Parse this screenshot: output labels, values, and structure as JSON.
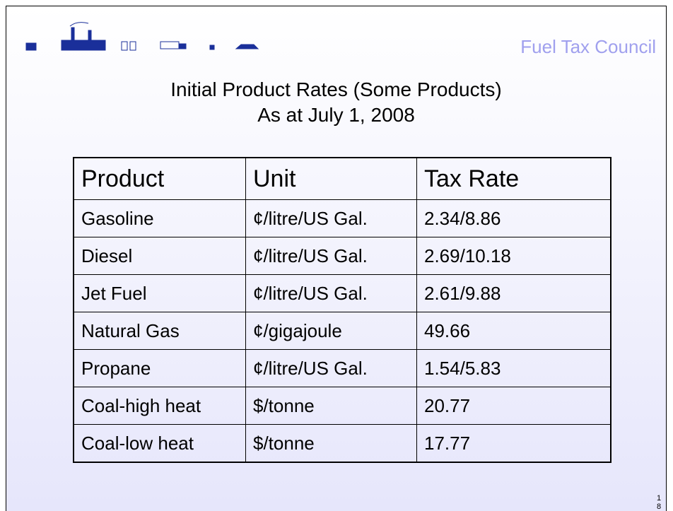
{
  "header": {
    "brand": "Fuel Tax Council"
  },
  "title": {
    "lines": [
      "Initial Product Rates (Some Products)",
      "As at July 1, 2008"
    ]
  },
  "table": {
    "columns": [
      "Product",
      "Unit",
      "Tax Rate"
    ],
    "rows": [
      [
        "Gasoline",
        "¢/litre/US Gal.",
        "2.34/8.86"
      ],
      [
        "Diesel",
        "¢/litre/US Gal.",
        "2.69/10.18"
      ],
      [
        "Jet Fuel",
        "¢/litre/US Gal.",
        "2.61/9.88"
      ],
      [
        "Natural Gas",
        "¢/gigajoule",
        "49.66"
      ],
      [
        "Propane",
        "¢/litre/US Gal.",
        "1.54/5.83"
      ],
      [
        "Coal-high heat",
        "$/tonne",
        "20.77"
      ],
      [
        "Coal-low heat",
        "$/tonne",
        "17.77"
      ]
    ]
  },
  "page_number": "18"
}
